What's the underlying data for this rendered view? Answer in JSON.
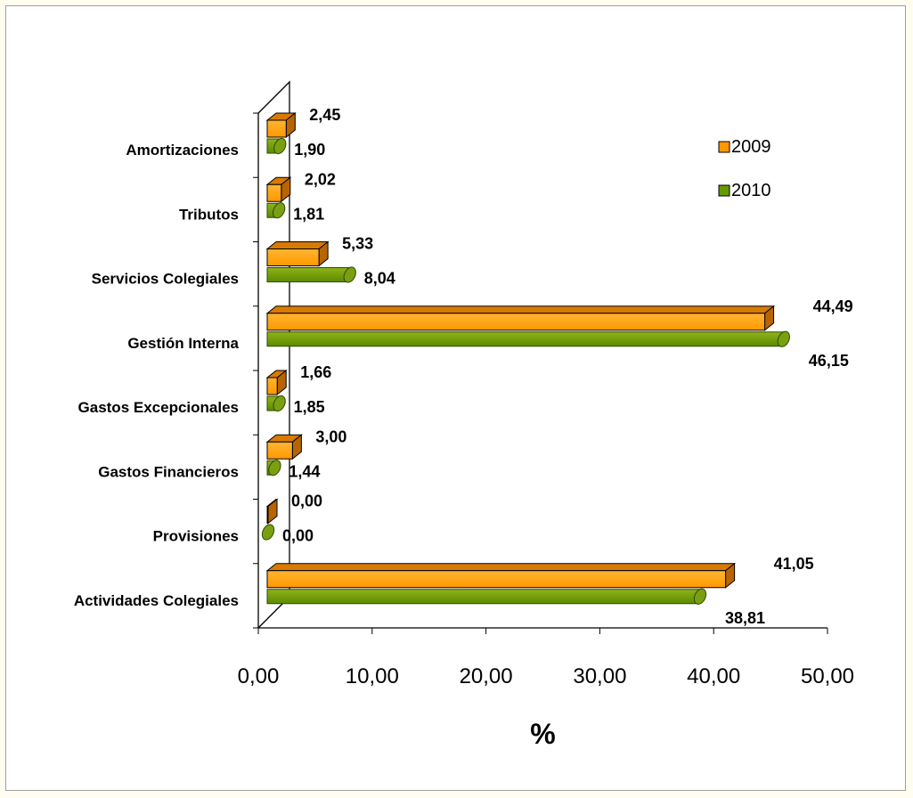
{
  "chart_data": {
    "type": "bar",
    "orientation": "horizontal",
    "style": "3d-cylinder",
    "categories": [
      "Amortizaciones",
      "Tributos",
      "Servicios Colegiales",
      "Gestión Interna",
      "Gastos Excepcionales",
      "Gastos Financieros",
      "Provisiones",
      "Actividades Colegiales"
    ],
    "series": [
      {
        "name": "2009",
        "color": "#ff9900",
        "values": [
          2.45,
          2.02,
          5.33,
          44.49,
          1.66,
          3.0,
          0.0,
          41.05
        ],
        "labels": [
          "2,45",
          "2,02",
          "5,33",
          "44,49",
          "1,66",
          "3,00",
          "0,00",
          "41,05"
        ]
      },
      {
        "name": "2010",
        "color": "#669900",
        "values": [
          1.9,
          1.81,
          8.04,
          46.15,
          1.85,
          1.44,
          0.0,
          38.81
        ],
        "labels": [
          "1,90",
          "1,81",
          "8,04",
          "46,15",
          "1,85",
          "1,44",
          "0,00",
          "38,81"
        ]
      }
    ],
    "xlim": [
      0,
      50
    ],
    "xticks": [
      "0,00",
      "10,00",
      "20,00",
      "30,00",
      "40,00",
      "50,00"
    ],
    "xlabel": "%",
    "legend_position": "top-right"
  }
}
